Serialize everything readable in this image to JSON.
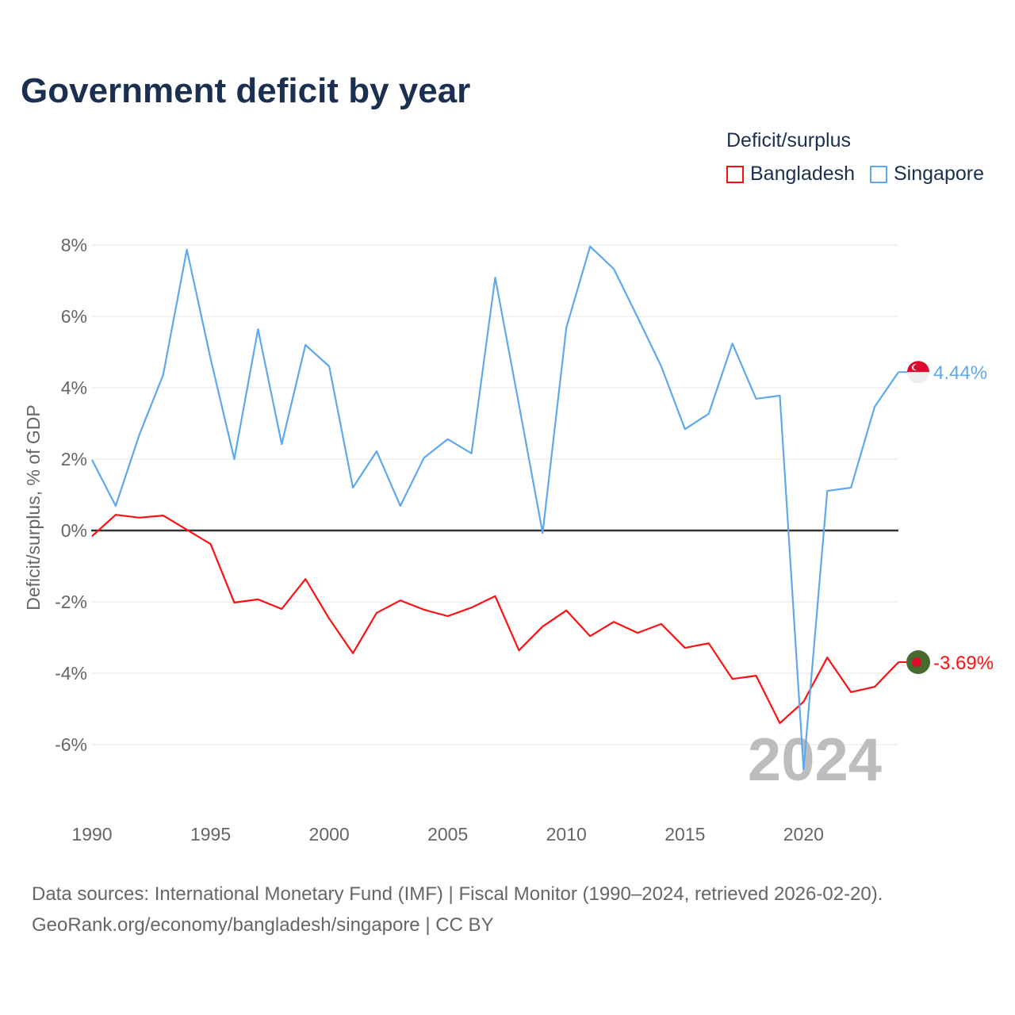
{
  "title": "Government deficit by year",
  "legend": {
    "title": "Deficit/surplus",
    "items": [
      {
        "label": "Bangladesh",
        "color": "#ff1010"
      },
      {
        "label": "Singapore",
        "color": "#5ea8ee"
      }
    ]
  },
  "source": [
    "Data sources: International Monetary Fund (IMF) | Fiscal Monitor (1990–2024, retrieved 2026-02-20).",
    "GeoRank.org/economy/bangladesh/singapore | CC BY"
  ],
  "chart_data": {
    "type": "line",
    "title": "Government deficit by year",
    "ylabel": "Deficit/surplus, % of GDP",
    "xlabel": "",
    "xlim": [
      1990,
      2024
    ],
    "ylim": [
      -8,
      8
    ],
    "yticks": [
      8,
      6,
      4,
      2,
      0,
      -2,
      -4,
      -6
    ],
    "ytick_labels": [
      "8%",
      "6%",
      "4%",
      "2%",
      "0%",
      "-2%",
      "-4%",
      "-6%"
    ],
    "xticks": [
      1990,
      1995,
      2000,
      2005,
      2010,
      2015,
      2020
    ],
    "xtick_labels": [
      "1990",
      "1995",
      "2000",
      "2005",
      "2010",
      "2015",
      "2020"
    ],
    "grid": true,
    "legend_position": "top-right",
    "watermark_year": "2024",
    "x": [
      1990,
      1991,
      1992,
      1993,
      1994,
      1995,
      1996,
      1997,
      1998,
      1999,
      2000,
      2001,
      2002,
      2003,
      2004,
      2005,
      2006,
      2007,
      2008,
      2009,
      2010,
      2011,
      2012,
      2013,
      2014,
      2015,
      2016,
      2017,
      2018,
      2019,
      2020,
      2021,
      2022,
      2023,
      2024
    ],
    "series": [
      {
        "name": "Bangladesh",
        "color": "#ff1010",
        "end_label": "-3.69%",
        "flag": "bangladesh-flag",
        "values": [
          -0.16,
          0.44,
          0.36,
          0.42,
          0.02,
          -0.38,
          -2.02,
          -1.93,
          -2.2,
          -1.36,
          -2.47,
          -3.44,
          -2.31,
          -1.96,
          -2.22,
          -2.4,
          -2.16,
          -1.84,
          -3.36,
          -2.69,
          -2.24,
          -2.96,
          -2.56,
          -2.87,
          -2.62,
          -3.29,
          -3.16,
          -4.16,
          -4.07,
          -5.4,
          -4.8,
          -3.56,
          -4.53,
          -4.38,
          -3.69
        ]
      },
      {
        "name": "Singapore",
        "color": "#5ea8ee",
        "end_label": "4.44%",
        "flag": "singapore-flag",
        "values": [
          1.98,
          0.69,
          2.69,
          4.36,
          7.87,
          4.82,
          2.0,
          5.64,
          2.42,
          5.2,
          4.6,
          1.2,
          2.22,
          0.69,
          2.04,
          2.56,
          2.16,
          7.09,
          3.53,
          -0.07,
          5.69,
          7.96,
          7.33,
          5.98,
          4.6,
          2.84,
          3.27,
          5.24,
          3.69,
          3.78,
          -6.69,
          1.11,
          1.2,
          3.47,
          4.44
        ]
      }
    ]
  }
}
